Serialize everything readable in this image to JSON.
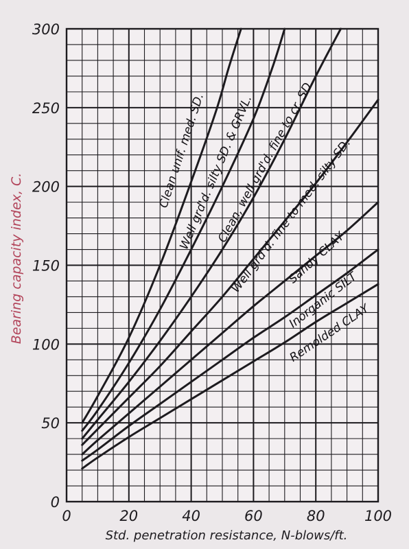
{
  "chart_data": {
    "type": "line",
    "xlabel": "Std. penetration resistance, N-blows/ft.",
    "ylabel": "Bearing capacity index, C.",
    "xlim": [
      0,
      100
    ],
    "ylim": [
      0,
      300
    ],
    "x_ticks": [
      "0",
      "20",
      "40",
      "60",
      "80",
      "100"
    ],
    "y_ticks": [
      "0",
      "50",
      "100",
      "150",
      "200",
      "250",
      "300"
    ],
    "grid": true,
    "colors": {
      "ink": "#1d1b1f",
      "paper": "#f2eef0",
      "ylabel": "#b2445a"
    },
    "series": [
      {
        "name": "Clean unif. med. SD.",
        "x": [
          5,
          10,
          20,
          30,
          40,
          48,
          52,
          56
        ],
        "y": [
          50,
          67,
          104,
          150,
          203,
          248,
          275,
          300
        ]
      },
      {
        "name": "Well grd'd. silty SD. & GRVL.",
        "x": [
          5,
          10,
          20,
          30,
          40,
          50,
          60,
          66,
          70
        ],
        "y": [
          45,
          58,
          88,
          122,
          160,
          200,
          243,
          275,
          300
        ]
      },
      {
        "name": "Clean, well grd'd. fine to cr. SD.",
        "x": [
          5,
          10,
          20,
          30,
          40,
          50,
          60,
          70,
          80,
          88
        ],
        "y": [
          40,
          52,
          76,
          102,
          130,
          160,
          193,
          230,
          270,
          300
        ]
      },
      {
        "name": "Well grd'd. fine to med. silty SD.",
        "x": [
          5,
          10,
          20,
          30,
          40,
          50,
          60,
          70,
          80,
          90,
          100
        ],
        "y": [
          36,
          46,
          66,
          86,
          108,
          130,
          154,
          178,
          202,
          228,
          255
        ]
      },
      {
        "name": "Sandy CLAY",
        "x": [
          5,
          10,
          20,
          30,
          40,
          50,
          60,
          70,
          80,
          90,
          100
        ],
        "y": [
          30,
          39,
          56,
          73,
          90,
          107,
          124,
          140,
          156,
          172,
          190
        ]
      },
      {
        "name": "Inorganic SILT",
        "x": [
          5,
          10,
          20,
          30,
          40,
          50,
          60,
          70,
          80,
          90,
          100
        ],
        "y": [
          26,
          33,
          48,
          62,
          76,
          90,
          104,
          117,
          131,
          145,
          160
        ]
      },
      {
        "name": "Remolded CLAY",
        "x": [
          5,
          10,
          20,
          30,
          40,
          50,
          60,
          70,
          80,
          90,
          100
        ],
        "y": [
          21,
          28,
          41,
          53,
          65,
          77,
          89,
          101,
          114,
          126,
          138
        ]
      }
    ]
  }
}
